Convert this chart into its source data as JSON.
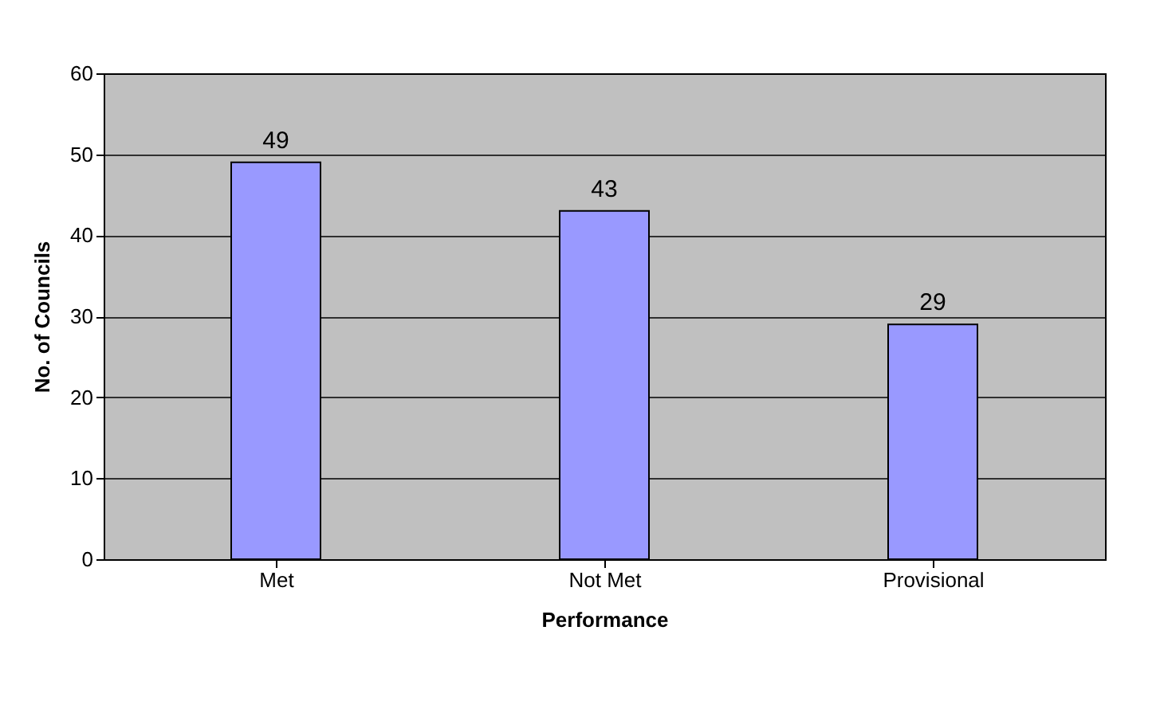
{
  "chart_data": {
    "type": "bar",
    "xlabel": "Performance",
    "ylabel": "No. of Councils",
    "categories": [
      "Met",
      "Not Met",
      "Provisional"
    ],
    "values": [
      49,
      43,
      29
    ],
    "color": "#9999ff",
    "ylim": [
      0,
      60
    ],
    "yticks": [
      0,
      10,
      20,
      30,
      40,
      50,
      60
    ],
    "grid": "y",
    "data_labels": true
  }
}
